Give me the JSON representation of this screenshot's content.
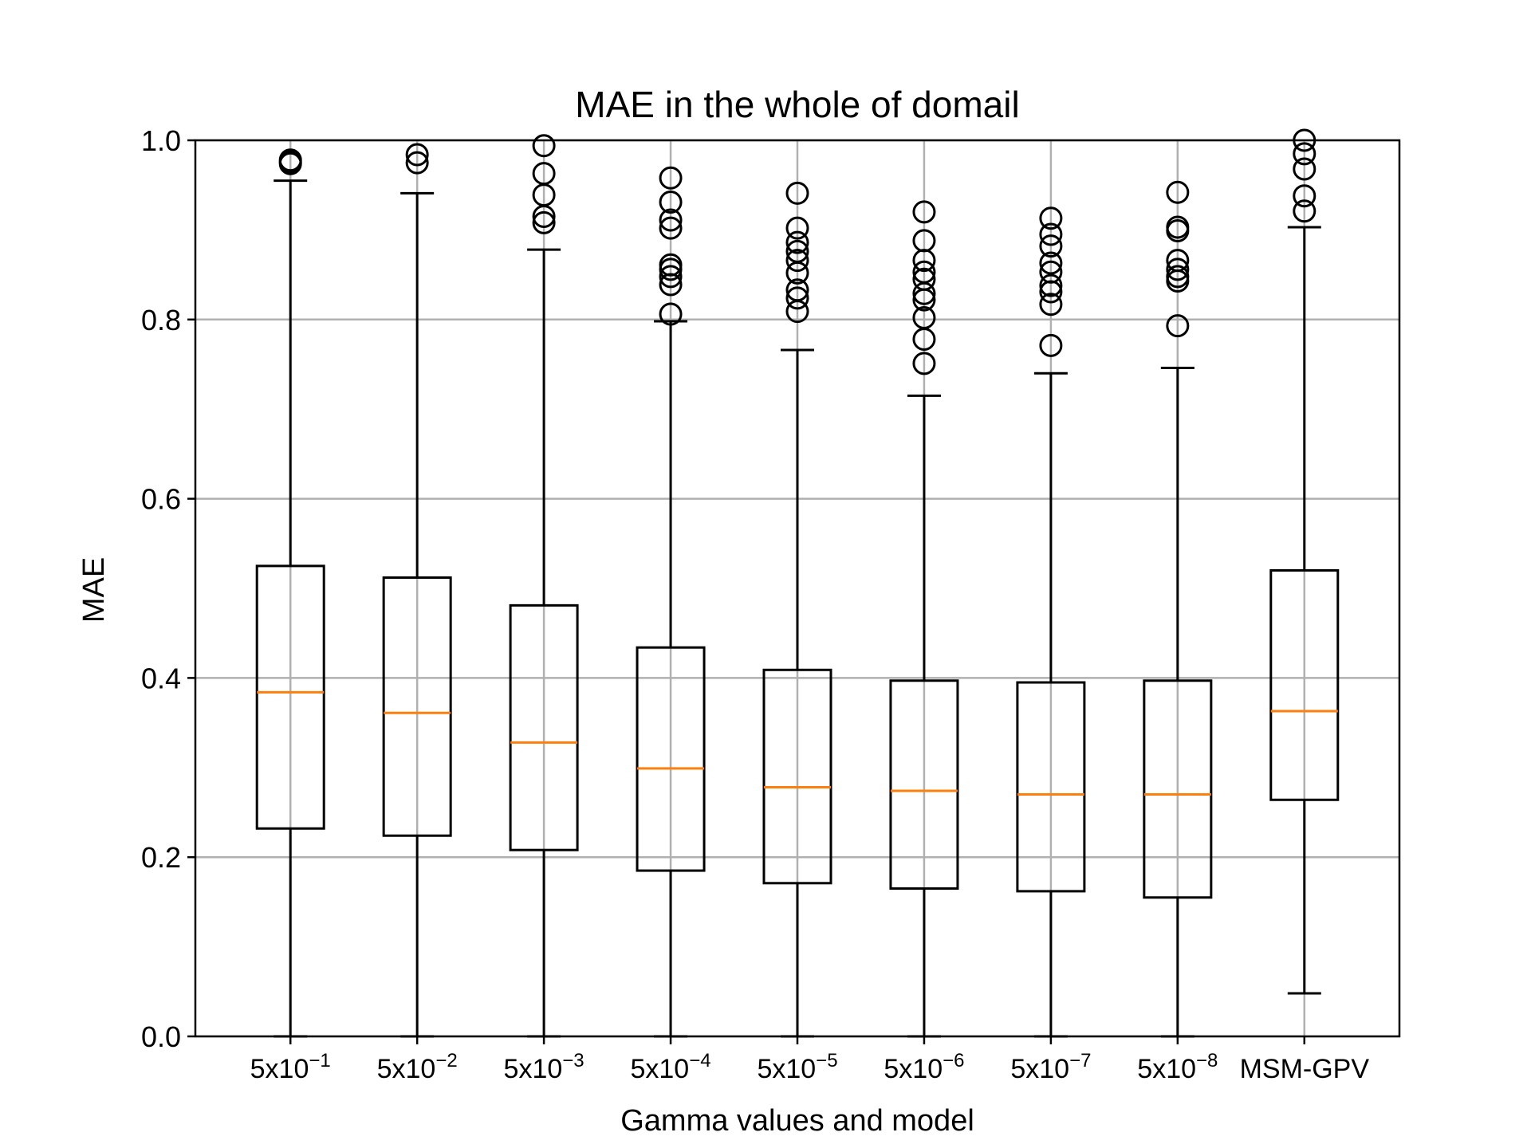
{
  "chart_data": {
    "type": "box",
    "title": "MAE in the whole of domail",
    "xlabel": "Gamma values and model",
    "ylabel": "MAE",
    "ylim": [
      0.0,
      1.0
    ],
    "yticks": [
      "0.0",
      "0.2",
      "0.4",
      "0.6",
      "0.8",
      "1.0"
    ],
    "grid": true,
    "categories": [
      {
        "base": "5x10",
        "exp": "−1"
      },
      {
        "base": "5x10",
        "exp": "−2"
      },
      {
        "base": "5x10",
        "exp": "−3"
      },
      {
        "base": "5x10",
        "exp": "−4"
      },
      {
        "base": "5x10",
        "exp": "−5"
      },
      {
        "base": "5x10",
        "exp": "−6"
      },
      {
        "base": "5x10",
        "exp": "−7"
      },
      {
        "base": "5x10",
        "exp": "−8"
      },
      {
        "base": "MSM-GPV",
        "exp": ""
      }
    ],
    "boxes": [
      {
        "whislo": 0.0,
        "q1": 0.232,
        "med": 0.384,
        "q3": 0.525,
        "whishi": 0.955,
        "fliers": [
          0.974,
          0.976,
          0.978
        ]
      },
      {
        "whislo": 0.0,
        "q1": 0.224,
        "med": 0.361,
        "q3": 0.512,
        "whishi": 0.941,
        "fliers": [
          0.975,
          0.984
        ]
      },
      {
        "whislo": 0.0,
        "q1": 0.208,
        "med": 0.328,
        "q3": 0.481,
        "whishi": 0.878,
        "fliers": [
          0.908,
          0.915,
          0.939,
          0.963,
          0.994
        ]
      },
      {
        "whislo": 0.0,
        "q1": 0.185,
        "med": 0.299,
        "q3": 0.434,
        "whishi": 0.798,
        "fliers": [
          0.806,
          0.839,
          0.848,
          0.856,
          0.861,
          0.902,
          0.911,
          0.931,
          0.958
        ]
      },
      {
        "whislo": 0.0,
        "q1": 0.171,
        "med": 0.278,
        "q3": 0.409,
        "whishi": 0.766,
        "fliers": [
          0.809,
          0.824,
          0.833,
          0.852,
          0.866,
          0.876,
          0.886,
          0.902,
          0.941
        ]
      },
      {
        "whislo": 0.0,
        "q1": 0.165,
        "med": 0.274,
        "q3": 0.397,
        "whishi": 0.715,
        "fliers": [
          0.751,
          0.778,
          0.802,
          0.822,
          0.829,
          0.845,
          0.853,
          0.866,
          0.888,
          0.92
        ]
      },
      {
        "whislo": 0.0,
        "q1": 0.162,
        "med": 0.27,
        "q3": 0.395,
        "whishi": 0.74,
        "fliers": [
          0.771,
          0.817,
          0.831,
          0.838,
          0.853,
          0.863,
          0.882,
          0.895,
          0.913
        ]
      },
      {
        "whislo": 0.0,
        "q1": 0.155,
        "med": 0.27,
        "q3": 0.397,
        "whishi": 0.746,
        "fliers": [
          0.793,
          0.843,
          0.848,
          0.856,
          0.866,
          0.899,
          0.903,
          0.942
        ]
      },
      {
        "whislo": 0.048,
        "q1": 0.264,
        "med": 0.363,
        "q3": 0.52,
        "whishi": 0.903,
        "fliers": [
          0.921,
          0.938,
          0.968,
          0.985,
          1.0
        ]
      }
    ]
  }
}
